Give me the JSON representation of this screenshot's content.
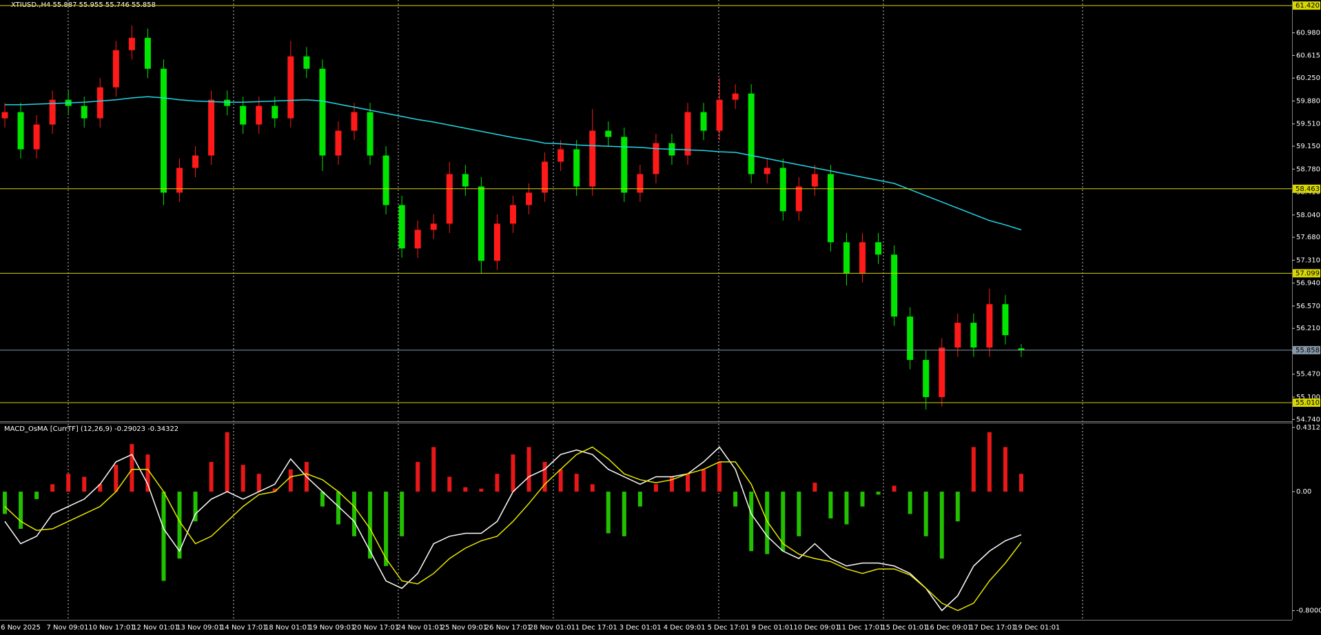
{
  "chart_data": [
    {
      "type": "candlestick",
      "title": "XTIUSD.,H4  55.887 55.955 55.746 55.858",
      "open": [
        59.6,
        59.7,
        59.1,
        59.5,
        59.9,
        59.8,
        59.6,
        60.1,
        60.7,
        60.9,
        60.4,
        58.4,
        58.8,
        59.0,
        59.9,
        59.8,
        59.5,
        59.8,
        59.6,
        60.6,
        60.4,
        59.0,
        59.4,
        59.7,
        59.0,
        58.2,
        57.5,
        57.8,
        57.9,
        58.7,
        58.5,
        57.3,
        57.9,
        58.2,
        58.4,
        58.9,
        59.1,
        58.5,
        59.4,
        59.3,
        58.4,
        58.7,
        59.2,
        59.0,
        59.7,
        59.4,
        59.9,
        60.0,
        58.7,
        58.8,
        58.1,
        58.5,
        58.7,
        57.6,
        57.1,
        57.6,
        57.4,
        56.4,
        55.7,
        55.1,
        55.9,
        56.3,
        55.9,
        56.6,
        55.887
      ],
      "high": [
        59.85,
        59.85,
        59.65,
        60.05,
        60.05,
        59.95,
        60.25,
        60.85,
        61.1,
        61.05,
        60.55,
        58.95,
        59.15,
        60.05,
        60.05,
        59.95,
        59.95,
        59.95,
        60.85,
        60.75,
        60.55,
        59.55,
        59.85,
        59.85,
        59.15,
        58.35,
        57.95,
        58.05,
        58.9,
        58.85,
        58.65,
        58.05,
        58.35,
        58.55,
        59.05,
        59.25,
        59.25,
        59.75,
        59.55,
        59.45,
        58.85,
        59.35,
        59.35,
        59.85,
        59.85,
        60.25,
        60.15,
        60.15,
        58.95,
        58.95,
        58.65,
        58.85,
        58.85,
        57.75,
        57.75,
        57.75,
        57.55,
        56.55,
        55.85,
        56.05,
        56.45,
        56.45,
        56.85,
        56.75,
        55.955
      ],
      "low": [
        59.45,
        58.95,
        58.95,
        59.35,
        59.65,
        59.45,
        59.45,
        59.95,
        60.55,
        60.25,
        58.2,
        58.25,
        58.65,
        58.85,
        59.65,
        59.35,
        59.35,
        59.45,
        59.45,
        60.25,
        58.75,
        58.85,
        59.25,
        58.85,
        58.05,
        57.35,
        57.35,
        57.65,
        57.75,
        58.35,
        57.1,
        57.15,
        57.75,
        58.05,
        58.25,
        58.75,
        58.35,
        58.35,
        59.15,
        58.25,
        58.25,
        58.55,
        58.85,
        58.85,
        59.25,
        59.25,
        59.75,
        58.55,
        58.55,
        57.95,
        57.95,
        58.35,
        57.45,
        56.9,
        56.95,
        57.25,
        56.25,
        55.55,
        54.9,
        54.95,
        55.75,
        55.75,
        55.75,
        55.95,
        55.746
      ],
      "close": [
        59.7,
        59.1,
        59.5,
        59.9,
        59.8,
        59.6,
        60.1,
        60.7,
        60.9,
        60.4,
        58.4,
        58.8,
        59.0,
        59.9,
        59.8,
        59.5,
        59.8,
        59.6,
        60.6,
        60.4,
        59.0,
        59.4,
        59.7,
        59.0,
        58.2,
        57.5,
        57.8,
        57.9,
        58.7,
        58.5,
        57.3,
        57.9,
        58.2,
        58.4,
        58.9,
        59.1,
        58.5,
        59.4,
        59.3,
        58.4,
        58.7,
        59.2,
        59.0,
        59.7,
        59.4,
        59.9,
        60.0,
        58.7,
        58.8,
        58.1,
        58.5,
        58.7,
        57.6,
        57.1,
        57.6,
        57.4,
        56.4,
        55.7,
        55.1,
        55.9,
        56.3,
        55.9,
        56.6,
        56.1,
        55.858
      ],
      "bull_color": "#ff1a1a",
      "bear_color": "#00e600",
      "ma": {
        "color": "#22d8e8",
        "values": [
          59.82,
          59.82,
          59.83,
          59.84,
          59.85,
          59.86,
          59.88,
          59.9,
          59.93,
          59.95,
          59.93,
          59.9,
          59.88,
          59.87,
          59.86,
          59.86,
          59.87,
          59.88,
          59.89,
          59.9,
          59.88,
          59.83,
          59.78,
          59.73,
          59.68,
          59.63,
          59.58,
          59.54,
          59.49,
          59.44,
          59.39,
          59.34,
          59.29,
          59.25,
          59.2,
          59.19,
          59.17,
          59.16,
          59.15,
          59.14,
          59.13,
          59.11,
          59.1,
          59.09,
          59.08,
          59.06,
          59.05,
          59.0,
          58.95,
          58.9,
          58.85,
          58.8,
          58.75,
          58.7,
          58.65,
          58.6,
          58.55,
          58.45,
          58.35,
          58.25,
          58.15,
          58.05,
          57.95,
          57.88,
          57.8
        ]
      },
      "ylim": [
        54.71,
        61.51
      ],
      "yticks": [
        {
          "value": 60.98,
          "label": "60.980"
        },
        {
          "value": 60.615,
          "label": "60.615"
        },
        {
          "value": 60.25,
          "label": "60.250"
        },
        {
          "value": 59.88,
          "label": "59.880"
        },
        {
          "value": 59.51,
          "label": "59.510"
        },
        {
          "value": 59.15,
          "label": "59.150"
        },
        {
          "value": 58.78,
          "label": "58.780"
        },
        {
          "value": 58.41,
          "label": "58.410"
        },
        {
          "value": 58.04,
          "label": "58.040"
        },
        {
          "value": 57.68,
          "label": "57.680"
        },
        {
          "value": 57.31,
          "label": "57.310"
        },
        {
          "value": 56.94,
          "label": "56.940"
        },
        {
          "value": 56.57,
          "label": "56.570"
        },
        {
          "value": 56.21,
          "label": "56.210"
        },
        {
          "value": 55.84,
          "label": "55.840"
        },
        {
          "value": 55.47,
          "label": "55.470"
        },
        {
          "value": 55.1,
          "label": "55.100"
        },
        {
          "value": 54.74,
          "label": "54.740"
        }
      ],
      "levels": [
        {
          "value": 61.42,
          "label": "61.420",
          "color": "#d8d800"
        },
        {
          "value": 58.463,
          "label": "58.463",
          "color": "#d8d800"
        },
        {
          "value": 57.099,
          "label": "57.099",
          "color": "#d8d800"
        },
        {
          "value": 55.01,
          "label": "55.010",
          "color": "#d8d800"
        },
        {
          "value": 55.858,
          "label": "55.858",
          "color": "#8899aa"
        }
      ],
      "x_labels": [
        "6 Nov 2025",
        "7 Nov 09:01",
        "10 Nov 17:01",
        "12 Nov 01:01",
        "13 Nov 09:01",
        "14 Nov 17:01",
        "18 Nov 01:01",
        "19 Nov 09:01",
        "20 Nov 17:01",
        "24 Nov 01:01",
        "25 Nov 09:01",
        "26 Nov 17:01",
        "28 Nov 01:01",
        "1 Dec 17:01",
        "3 Dec 01:01",
        "4 Dec 09:01",
        "5 Dec 17:01",
        "9 Dec 01:01",
        "10 Dec 09:01",
        "11 Dec 17:01",
        "15 Dec 01:01",
        "16 Dec 09:01",
        "17 Dec 17:01",
        "19 Dec 01:01"
      ]
    },
    {
      "type": "macd",
      "title": "MACD_OsMA [CurrTF] (12,26,9) -0.29023 -0.34322",
      "histogram": [
        -0.15,
        -0.25,
        -0.05,
        0.05,
        0.12,
        0.1,
        0.05,
        0.18,
        0.32,
        0.25,
        -0.6,
        -0.45,
        -0.2,
        0.2,
        0.4,
        0.18,
        0.12,
        0.02,
        0.15,
        0.2,
        -0.1,
        -0.22,
        -0.3,
        -0.45,
        -0.5,
        -0.3,
        0.2,
        0.3,
        0.1,
        0.03,
        0.02,
        0.12,
        0.25,
        0.3,
        0.2,
        0.15,
        0.12,
        0.05,
        -0.28,
        -0.3,
        -0.1,
        0.05,
        0.1,
        0.12,
        0.15,
        0.2,
        -0.1,
        -0.4,
        -0.42,
        -0.4,
        -0.3,
        0.06,
        -0.18,
        -0.22,
        -0.1,
        -0.02,
        0.04,
        -0.15,
        -0.3,
        -0.45,
        -0.2,
        0.3,
        0.4,
        0.3,
        0.12
      ],
      "pos_color": "#e81818",
      "neg_color": "#22c000",
      "macd": {
        "color": "#ffffff",
        "values": [
          -0.2,
          -0.35,
          -0.3,
          -0.15,
          -0.1,
          -0.05,
          0.05,
          0.2,
          0.25,
          0.05,
          -0.25,
          -0.4,
          -0.15,
          -0.05,
          0.0,
          -0.05,
          0.0,
          0.05,
          0.22,
          0.1,
          0.0,
          -0.1,
          -0.2,
          -0.4,
          -0.6,
          -0.65,
          -0.55,
          -0.35,
          -0.3,
          -0.28,
          -0.28,
          -0.2,
          0.0,
          0.1,
          0.15,
          0.25,
          0.28,
          0.25,
          0.15,
          0.1,
          0.05,
          0.1,
          0.1,
          0.12,
          0.2,
          0.3,
          0.15,
          -0.15,
          -0.3,
          -0.4,
          -0.45,
          -0.35,
          -0.45,
          -0.5,
          -0.48,
          -0.48,
          -0.5,
          -0.55,
          -0.65,
          -0.8,
          -0.7,
          -0.5,
          -0.4,
          -0.33,
          -0.29
        ]
      },
      "signal": {
        "color": "#e8e800",
        "values": [
          -0.1,
          -0.2,
          -0.26,
          -0.25,
          -0.2,
          -0.15,
          -0.1,
          0.0,
          0.15,
          0.15,
          0.0,
          -0.2,
          -0.35,
          -0.3,
          -0.2,
          -0.1,
          -0.02,
          0.0,
          0.1,
          0.12,
          0.08,
          0.0,
          -0.1,
          -0.25,
          -0.45,
          -0.6,
          -0.62,
          -0.55,
          -0.45,
          -0.38,
          -0.33,
          -0.3,
          -0.2,
          -0.08,
          0.05,
          0.15,
          0.25,
          0.3,
          0.22,
          0.12,
          0.08,
          0.06,
          0.08,
          0.12,
          0.15,
          0.2,
          0.2,
          0.05,
          -0.2,
          -0.35,
          -0.42,
          -0.45,
          -0.47,
          -0.52,
          -0.55,
          -0.52,
          -0.52,
          -0.56,
          -0.65,
          -0.75,
          -0.8,
          -0.75,
          -0.6,
          -0.48,
          -0.34
        ]
      },
      "ylim": [
        -0.862,
        0.464
      ],
      "yticks": [
        0.43123,
        {
          "value": 0,
          "label": "0.00"
        },
        -0.80007
      ]
    }
  ]
}
